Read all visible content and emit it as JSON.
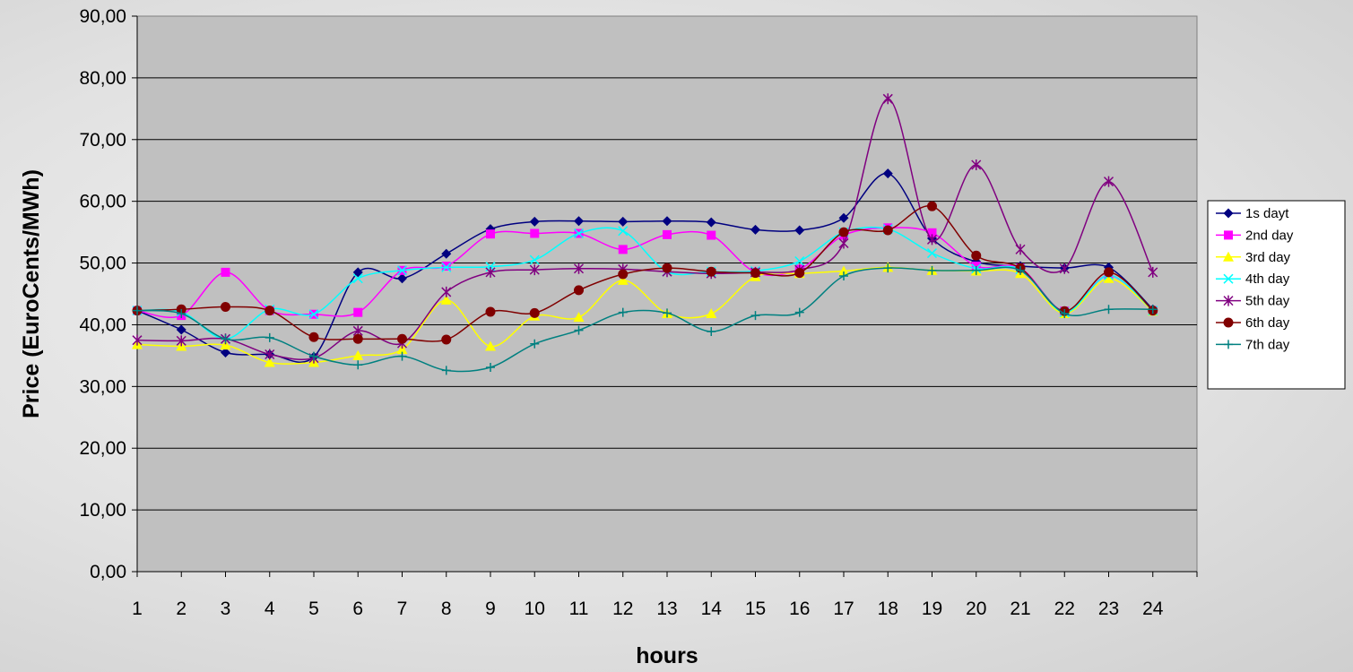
{
  "chart_data": {
    "type": "line",
    "title": "",
    "xlabel": "hours",
    "ylabel": "Price (EuroCents/MWh)",
    "ylim": [
      0,
      90
    ],
    "y_ticks": [
      "0,00",
      "10,00",
      "20,00",
      "30,00",
      "40,00",
      "50,00",
      "60,00",
      "70,00",
      "80,00",
      "90,00"
    ],
    "categories": [
      "1",
      "2",
      "3",
      "4",
      "5",
      "6",
      "7",
      "8",
      "9",
      "10",
      "11",
      "12",
      "13",
      "14",
      "15",
      "16",
      "17",
      "18",
      "19",
      "20",
      "21",
      "22",
      "23",
      "24"
    ],
    "grid": "horizontal",
    "legend_position": "right",
    "plot_background": "#c0c0c0",
    "series": [
      {
        "name": "1s dayt",
        "color": "#000080",
        "marker": "diamond",
        "values": [
          42.3,
          39.2,
          35.5,
          35.2,
          34.8,
          48.5,
          47.5,
          51.5,
          55.5,
          56.7,
          56.8,
          56.7,
          56.8,
          56.6,
          55.4,
          55.3,
          57.3,
          64.5,
          54.0,
          50.2,
          49.5,
          49.2,
          49.3,
          42.5
        ]
      },
      {
        "name": "2nd day",
        "color": "#ff00ff",
        "marker": "square",
        "values": [
          42.3,
          41.5,
          48.5,
          42.3,
          41.7,
          42.0,
          48.8,
          49.5,
          54.7,
          54.8,
          54.8,
          52.2,
          54.6,
          54.5,
          48.5,
          49.0,
          54.5,
          55.7,
          54.9,
          49.5,
          49.2,
          42.2,
          48.0,
          42.3
        ]
      },
      {
        "name": "3rd day",
        "color": "#ffff00",
        "marker": "triangle",
        "values": [
          36.8,
          36.5,
          36.7,
          33.9,
          33.9,
          35.0,
          36.0,
          44.0,
          36.5,
          41.4,
          41.2,
          47.2,
          41.8,
          41.8,
          47.8,
          48.3,
          48.7,
          49.3,
          48.8,
          48.7,
          48.3,
          41.8,
          47.5,
          42.2
        ]
      },
      {
        "name": "4th day",
        "color": "#00ffff",
        "marker": "x",
        "values": [
          42.3,
          42.1,
          37.7,
          42.5,
          41.7,
          47.5,
          48.8,
          49.3,
          49.4,
          50.5,
          54.8,
          55.2,
          48.6,
          48.6,
          48.7,
          50.3,
          55.0,
          55.5,
          51.6,
          49.1,
          49.0,
          42.0,
          48.0,
          42.3
        ]
      },
      {
        "name": "5th day",
        "color": "#800080",
        "marker": "star",
        "values": [
          37.5,
          37.4,
          37.7,
          35.2,
          34.6,
          39.0,
          37.0,
          45.3,
          48.5,
          48.9,
          49.1,
          49.0,
          48.6,
          48.3,
          48.5,
          48.9,
          53.2,
          76.6,
          53.8,
          65.9,
          52.2,
          49.1,
          63.2,
          48.5
        ]
      },
      {
        "name": "6th day",
        "color": "#800000",
        "marker": "circle",
        "values": [
          42.3,
          42.5,
          42.9,
          42.3,
          38.0,
          37.7,
          37.7,
          37.6,
          42.1,
          41.9,
          45.6,
          48.2,
          49.2,
          48.6,
          48.4,
          48.4,
          55.0,
          55.3,
          59.2,
          51.2,
          49.2,
          42.2,
          48.5,
          42.3
        ]
      },
      {
        "name": "7th day",
        "color": "#008080",
        "marker": "plus",
        "values": [
          42.3,
          41.8,
          37.7,
          37.9,
          34.9,
          33.5,
          34.9,
          32.6,
          33.1,
          36.9,
          39.1,
          42.0,
          41.9,
          38.9,
          41.5,
          42.0,
          47.9,
          49.2,
          48.8,
          48.8,
          48.8,
          41.8,
          42.5,
          42.5
        ]
      }
    ]
  }
}
